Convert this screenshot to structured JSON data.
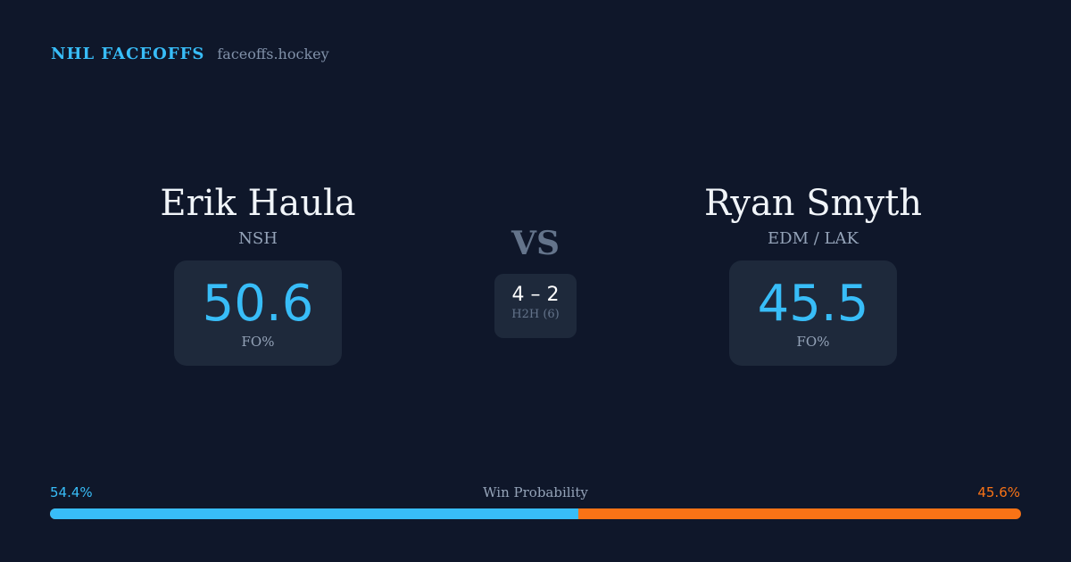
{
  "brand": {
    "title": "NHL FACEOFFS",
    "domain": "faceoffs.hockey"
  },
  "left": {
    "name": "Erik Haula",
    "team": "NSH",
    "value": "50.6",
    "label": "FO%"
  },
  "right": {
    "name": "Ryan Smyth",
    "team": "EDM / LAK",
    "value": "45.5",
    "label": "FO%"
  },
  "vs": "VS",
  "h2h": {
    "score": "4 – 2",
    "label": "H2H (6)"
  },
  "win": {
    "label": "Win Probability",
    "left": "54.4%",
    "right": "45.6%",
    "left_fraction": 0.544
  },
  "colors": {
    "left": "#38bdf8",
    "right": "#f97316",
    "bg": "#0f172a"
  }
}
